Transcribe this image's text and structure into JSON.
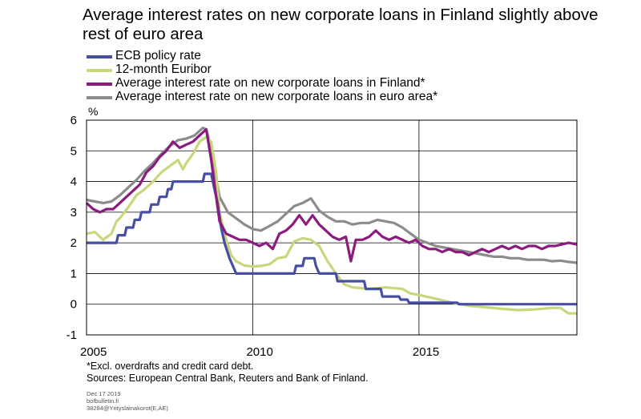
{
  "title": "Average interest rates on new corporate loans in Finland slightly above rest of euro area",
  "footnotes": {
    "note": "*Excl. overdrafts and credit card debt.",
    "sources": "Sources: European Central Bank, Reuters and Bank of Finland."
  },
  "meta": {
    "date": "Dec 17 2019",
    "site": "bofbulletin.fi",
    "code": "38284@Yrityslainakorot(E,AE)"
  },
  "chart_data": {
    "type": "line",
    "title": "Average interest rates on new corporate loans in Finland slightly above rest of euro area",
    "ylabel": "%",
    "ylim": [
      -1,
      6
    ],
    "yticks": [
      -1,
      0,
      1,
      2,
      3,
      4,
      5,
      6
    ],
    "xlim": [
      2005,
      2019.75
    ],
    "xticks": [
      2005,
      2010,
      2015
    ],
    "xtick_labels": [
      "2005",
      "2010",
      "2015"
    ],
    "grid": "vertical-and-horizontal",
    "legend": "top-left, above plot",
    "series": [
      {
        "name": "ECB policy rate",
        "color": "#464fa3",
        "points": [
          [
            2005.0,
            2.0
          ],
          [
            2005.9,
            2.0
          ],
          [
            2005.95,
            2.25
          ],
          [
            2006.15,
            2.25
          ],
          [
            2006.2,
            2.5
          ],
          [
            2006.4,
            2.5
          ],
          [
            2006.45,
            2.75
          ],
          [
            2006.6,
            2.75
          ],
          [
            2006.65,
            3.0
          ],
          [
            2006.9,
            3.0
          ],
          [
            2006.95,
            3.25
          ],
          [
            2007.15,
            3.25
          ],
          [
            2007.2,
            3.5
          ],
          [
            2007.4,
            3.5
          ],
          [
            2007.45,
            3.75
          ],
          [
            2007.55,
            3.75
          ],
          [
            2007.6,
            4.0
          ],
          [
            2008.5,
            4.0
          ],
          [
            2008.55,
            4.25
          ],
          [
            2008.75,
            4.25
          ],
          [
            2008.85,
            3.75
          ],
          [
            2008.95,
            3.25
          ],
          [
            2009.05,
            2.5
          ],
          [
            2009.15,
            2.0
          ],
          [
            2009.3,
            1.5
          ],
          [
            2009.4,
            1.25
          ],
          [
            2009.5,
            1.0
          ],
          [
            2011.25,
            1.0
          ],
          [
            2011.3,
            1.25
          ],
          [
            2011.5,
            1.25
          ],
          [
            2011.55,
            1.5
          ],
          [
            2011.85,
            1.5
          ],
          [
            2011.9,
            1.25
          ],
          [
            2012.0,
            1.0
          ],
          [
            2012.5,
            1.0
          ],
          [
            2012.55,
            0.75
          ],
          [
            2013.35,
            0.75
          ],
          [
            2013.4,
            0.5
          ],
          [
            2013.85,
            0.5
          ],
          [
            2013.9,
            0.25
          ],
          [
            2014.4,
            0.25
          ],
          [
            2014.45,
            0.15
          ],
          [
            2014.65,
            0.15
          ],
          [
            2014.7,
            0.05
          ],
          [
            2016.15,
            0.05
          ],
          [
            2016.2,
            0.0
          ],
          [
            2019.75,
            0.0
          ]
        ]
      },
      {
        "name": "12-month Euribor",
        "color": "#c9d67c",
        "points": [
          [
            2005.0,
            2.3
          ],
          [
            2005.25,
            2.35
          ],
          [
            2005.5,
            2.1
          ],
          [
            2005.75,
            2.3
          ],
          [
            2005.9,
            2.7
          ],
          [
            2006.0,
            2.8
          ],
          [
            2006.25,
            3.15
          ],
          [
            2006.5,
            3.55
          ],
          [
            2006.75,
            3.75
          ],
          [
            2007.0,
            4.0
          ],
          [
            2007.25,
            4.3
          ],
          [
            2007.5,
            4.5
          ],
          [
            2007.75,
            4.7
          ],
          [
            2007.9,
            4.4
          ],
          [
            2008.0,
            4.6
          ],
          [
            2008.2,
            4.9
          ],
          [
            2008.4,
            5.3
          ],
          [
            2008.6,
            5.45
          ],
          [
            2008.75,
            5.3
          ],
          [
            2008.9,
            4.3
          ],
          [
            2009.0,
            3.0
          ],
          [
            2009.2,
            2.1
          ],
          [
            2009.35,
            1.6
          ],
          [
            2009.5,
            1.4
          ],
          [
            2009.75,
            1.26
          ],
          [
            2010.0,
            1.23
          ],
          [
            2010.25,
            1.25
          ],
          [
            2010.5,
            1.3
          ],
          [
            2010.75,
            1.5
          ],
          [
            2011.0,
            1.55
          ],
          [
            2011.25,
            2.05
          ],
          [
            2011.5,
            2.15
          ],
          [
            2011.75,
            2.1
          ],
          [
            2012.0,
            1.9
          ],
          [
            2012.25,
            1.4
          ],
          [
            2012.5,
            1.0
          ],
          [
            2012.75,
            0.65
          ],
          [
            2013.0,
            0.55
          ],
          [
            2013.5,
            0.5
          ],
          [
            2014.0,
            0.55
          ],
          [
            2014.5,
            0.5
          ],
          [
            2014.75,
            0.35
          ],
          [
            2015.0,
            0.3
          ],
          [
            2015.5,
            0.18
          ],
          [
            2016.0,
            0.05
          ],
          [
            2016.5,
            -0.05
          ],
          [
            2017.0,
            -0.1
          ],
          [
            2017.5,
            -0.15
          ],
          [
            2018.0,
            -0.19
          ],
          [
            2018.5,
            -0.17
          ],
          [
            2019.0,
            -0.12
          ],
          [
            2019.25,
            -0.12
          ],
          [
            2019.5,
            -0.3
          ],
          [
            2019.75,
            -0.3
          ]
        ]
      },
      {
        "name": "Average interest rate on new corporate loans in Finland*",
        "color": "#8b1c7e",
        "points": [
          [
            2005.0,
            3.3
          ],
          [
            2005.2,
            3.1
          ],
          [
            2005.4,
            3.0
          ],
          [
            2005.6,
            3.1
          ],
          [
            2005.8,
            3.1
          ],
          [
            2006.0,
            3.3
          ],
          [
            2006.2,
            3.5
          ],
          [
            2006.4,
            3.7
          ],
          [
            2006.6,
            3.9
          ],
          [
            2006.8,
            4.3
          ],
          [
            2007.0,
            4.5
          ],
          [
            2007.2,
            4.8
          ],
          [
            2007.4,
            5.0
          ],
          [
            2007.6,
            5.3
          ],
          [
            2007.8,
            5.1
          ],
          [
            2008.0,
            5.2
          ],
          [
            2008.2,
            5.3
          ],
          [
            2008.4,
            5.5
          ],
          [
            2008.6,
            5.7
          ],
          [
            2008.75,
            4.7
          ],
          [
            2008.9,
            3.5
          ],
          [
            2009.0,
            2.7
          ],
          [
            2009.2,
            2.3
          ],
          [
            2009.4,
            2.2
          ],
          [
            2009.6,
            2.1
          ],
          [
            2009.8,
            2.1
          ],
          [
            2010.0,
            2.0
          ],
          [
            2010.2,
            1.9
          ],
          [
            2010.4,
            2.0
          ],
          [
            2010.6,
            1.8
          ],
          [
            2010.8,
            2.3
          ],
          [
            2011.0,
            2.4
          ],
          [
            2011.2,
            2.6
          ],
          [
            2011.4,
            2.9
          ],
          [
            2011.6,
            2.6
          ],
          [
            2011.8,
            2.9
          ],
          [
            2012.0,
            2.6
          ],
          [
            2012.2,
            2.4
          ],
          [
            2012.4,
            2.2
          ],
          [
            2012.6,
            2.1
          ],
          [
            2012.8,
            2.2
          ],
          [
            2012.95,
            1.4
          ],
          [
            2013.1,
            2.1
          ],
          [
            2013.3,
            2.1
          ],
          [
            2013.5,
            2.2
          ],
          [
            2013.7,
            2.4
          ],
          [
            2013.9,
            2.2
          ],
          [
            2014.1,
            2.1
          ],
          [
            2014.3,
            2.2
          ],
          [
            2014.5,
            2.1
          ],
          [
            2014.7,
            2.0
          ],
          [
            2014.9,
            2.1
          ],
          [
            2015.1,
            1.9
          ],
          [
            2015.3,
            1.8
          ],
          [
            2015.5,
            1.8
          ],
          [
            2015.7,
            1.7
          ],
          [
            2015.9,
            1.8
          ],
          [
            2016.1,
            1.7
          ],
          [
            2016.3,
            1.7
          ],
          [
            2016.5,
            1.6
          ],
          [
            2016.7,
            1.7
          ],
          [
            2016.9,
            1.8
          ],
          [
            2017.1,
            1.7
          ],
          [
            2017.3,
            1.8
          ],
          [
            2017.5,
            1.9
          ],
          [
            2017.7,
            1.8
          ],
          [
            2017.9,
            1.9
          ],
          [
            2018.1,
            1.8
          ],
          [
            2018.3,
            1.9
          ],
          [
            2018.5,
            1.9
          ],
          [
            2018.7,
            1.8
          ],
          [
            2018.9,
            1.9
          ],
          [
            2019.1,
            1.9
          ],
          [
            2019.3,
            1.95
          ],
          [
            2019.5,
            2.0
          ],
          [
            2019.75,
            1.95
          ]
        ]
      },
      {
        "name": "Average interest rate on new corporate loans in euro area*",
        "color": "#8c8c8c",
        "points": [
          [
            2005.0,
            3.4
          ],
          [
            2005.25,
            3.35
          ],
          [
            2005.5,
            3.3
          ],
          [
            2005.75,
            3.35
          ],
          [
            2006.0,
            3.55
          ],
          [
            2006.25,
            3.8
          ],
          [
            2006.5,
            4.05
          ],
          [
            2006.75,
            4.35
          ],
          [
            2007.0,
            4.6
          ],
          [
            2007.25,
            4.9
          ],
          [
            2007.5,
            5.15
          ],
          [
            2007.75,
            5.35
          ],
          [
            2008.0,
            5.4
          ],
          [
            2008.25,
            5.5
          ],
          [
            2008.5,
            5.75
          ],
          [
            2008.6,
            5.7
          ],
          [
            2008.75,
            5.1
          ],
          [
            2008.9,
            4.1
          ],
          [
            2009.0,
            3.5
          ],
          [
            2009.25,
            3.0
          ],
          [
            2009.5,
            2.8
          ],
          [
            2009.75,
            2.6
          ],
          [
            2010.0,
            2.45
          ],
          [
            2010.25,
            2.4
          ],
          [
            2010.5,
            2.55
          ],
          [
            2010.75,
            2.7
          ],
          [
            2011.0,
            2.95
          ],
          [
            2011.25,
            3.2
          ],
          [
            2011.5,
            3.3
          ],
          [
            2011.75,
            3.45
          ],
          [
            2012.0,
            3.05
          ],
          [
            2012.25,
            2.85
          ],
          [
            2012.5,
            2.7
          ],
          [
            2012.75,
            2.7
          ],
          [
            2013.0,
            2.6
          ],
          [
            2013.25,
            2.65
          ],
          [
            2013.5,
            2.65
          ],
          [
            2013.75,
            2.75
          ],
          [
            2014.0,
            2.7
          ],
          [
            2014.25,
            2.65
          ],
          [
            2014.5,
            2.5
          ],
          [
            2014.75,
            2.3
          ],
          [
            2015.0,
            2.1
          ],
          [
            2015.25,
            2.0
          ],
          [
            2015.5,
            1.9
          ],
          [
            2015.75,
            1.85
          ],
          [
            2016.0,
            1.8
          ],
          [
            2016.25,
            1.75
          ],
          [
            2016.5,
            1.7
          ],
          [
            2016.75,
            1.65
          ],
          [
            2017.0,
            1.6
          ],
          [
            2017.25,
            1.55
          ],
          [
            2017.5,
            1.55
          ],
          [
            2017.75,
            1.5
          ],
          [
            2018.0,
            1.5
          ],
          [
            2018.25,
            1.45
          ],
          [
            2018.5,
            1.45
          ],
          [
            2018.75,
            1.45
          ],
          [
            2019.0,
            1.4
          ],
          [
            2019.25,
            1.42
          ],
          [
            2019.5,
            1.38
          ],
          [
            2019.75,
            1.35
          ]
        ]
      }
    ]
  }
}
